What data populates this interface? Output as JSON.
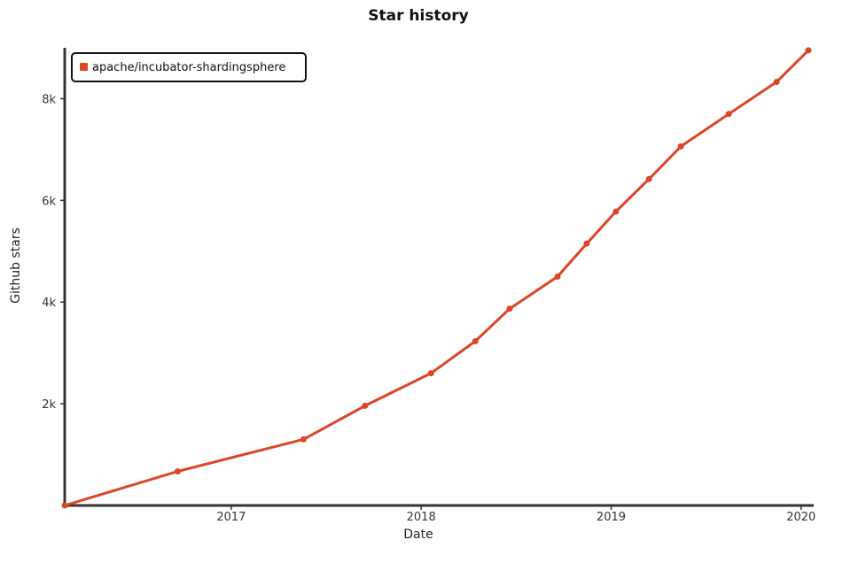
{
  "chart_data": {
    "type": "line",
    "title": "Star history",
    "xlabel": "Date",
    "ylabel": "Github stars",
    "x_ticks": [
      "2017",
      "2018",
      "2019",
      "2020"
    ],
    "y_ticks": [
      "2k",
      "4k",
      "6k",
      "8k"
    ],
    "legend_position": "top-left",
    "grid": false,
    "series": [
      {
        "name": "apache/incubator-shardingsphere",
        "color": "#dd4528",
        "points": [
          [
            "2016-02-16",
            0
          ],
          [
            "2016-09-20",
            670
          ],
          [
            "2017-05-20",
            1300
          ],
          [
            "2017-09-15",
            1960
          ],
          [
            "2018-01-20",
            2600
          ],
          [
            "2018-04-15",
            3230
          ],
          [
            "2018-06-20",
            3870
          ],
          [
            "2018-09-20",
            4500
          ],
          [
            "2018-11-15",
            5150
          ],
          [
            "2019-01-10",
            5780
          ],
          [
            "2019-03-15",
            6420
          ],
          [
            "2019-05-15",
            7060
          ],
          [
            "2019-08-15",
            7700
          ],
          [
            "2019-11-15",
            8330
          ],
          [
            "2020-01-15",
            8950
          ]
        ]
      }
    ],
    "xlim": [
      "2016-02-16",
      "2020-01-15"
    ],
    "ylim": [
      0,
      9000
    ]
  }
}
